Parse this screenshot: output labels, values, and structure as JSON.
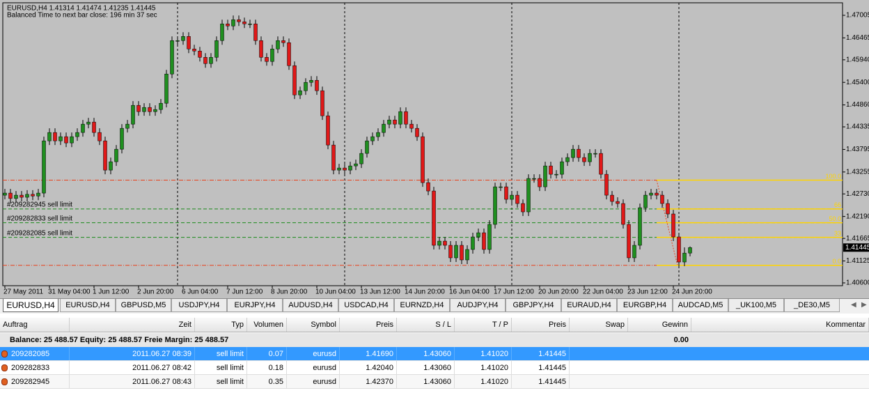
{
  "chart_data": {
    "type": "candlestick",
    "title": "EURUSD,H4  1.41314 1.41474 1.41235 1.41445",
    "subtitle": "Balanced Time to next bar close: 196 min 37 sec",
    "categories": [
      "27 May 2011",
      null,
      null,
      null,
      null,
      null,
      null,
      null,
      "31 May 04:00",
      null,
      null,
      null,
      null,
      null,
      null,
      null,
      "1 Jun 12:00",
      null,
      null,
      null,
      null,
      null,
      null,
      null,
      "2 Jun 20:00",
      null,
      null,
      null,
      null,
      null,
      null,
      null,
      "6 Jun 04:00",
      null,
      null,
      null,
      null,
      null,
      null,
      null,
      "7 Jun 12:00",
      null,
      null,
      null,
      null,
      null,
      null,
      null,
      "8 Jun 20:00",
      null,
      null,
      null,
      null,
      null,
      null,
      null,
      "10 Jun 04:00",
      null,
      null,
      null,
      null,
      null,
      null,
      null,
      "13 Jun 12:00",
      null,
      null,
      null,
      null,
      null,
      null,
      null,
      "14 Jun 20:00",
      null,
      null,
      null,
      null,
      null,
      null,
      null,
      "16 Jun 04:00",
      null,
      null,
      null,
      null,
      null,
      null,
      null,
      "17 Jun 12:00",
      null,
      null,
      null,
      null,
      null,
      null,
      null,
      "20 Jun 20:00",
      null,
      null,
      null,
      null,
      null,
      null,
      null,
      "22 Jun 04:00",
      null,
      null,
      null,
      null,
      null,
      null,
      null,
      "23 Jun 12:00",
      null,
      null,
      null,
      null,
      null,
      null,
      null,
      "24 Jun 20:00",
      null,
      null,
      null
    ],
    "open": [
      1.427,
      1.4275,
      1.4262,
      1.427,
      1.4265,
      1.4272,
      1.4268,
      1.4275,
      1.44,
      1.442,
      1.44,
      1.441,
      1.4395,
      1.441,
      1.442,
      1.444,
      1.4445,
      1.442,
      1.44,
      1.433,
      1.435,
      1.438,
      1.443,
      1.444,
      1.4485,
      1.447,
      1.448,
      1.447,
      1.4475,
      1.449,
      1.456,
      1.464,
      1.464,
      1.465,
      1.462,
      1.4615,
      1.46,
      1.4585,
      1.46,
      1.464,
      1.468,
      1.4675,
      1.469,
      1.4685,
      1.468,
      1.468,
      1.464,
      1.46,
      1.459,
      1.462,
      1.464,
      1.4635,
      1.458,
      1.451,
      1.452,
      1.454,
      1.4545,
      1.452,
      1.446,
      1.439,
      1.433,
      1.4335,
      1.433,
      1.434,
      1.4345,
      1.437,
      1.44,
      1.441,
      1.442,
      1.444,
      1.445,
      1.444,
      1.447,
      1.444,
      1.443,
      1.441,
      1.43,
      1.428,
      1.415,
      1.416,
      1.415,
      1.412,
      1.415,
      1.4115,
      1.414,
      1.417,
      1.418,
      1.414,
      1.42,
      1.429,
      1.429,
      1.426,
      1.427,
      1.425,
      1.423,
      1.431,
      1.431,
      1.429,
      1.434,
      1.432,
      1.432,
      1.435,
      1.436,
      1.438,
      1.436,
      1.435,
      1.437,
      1.437,
      1.432,
      1.427,
      1.4255,
      1.425,
      1.42,
      1.412,
      1.415,
      1.424,
      1.427,
      1.4275,
      1.427,
      1.425,
      1.4225,
      1.417,
      1.411,
      1.41314
    ],
    "high": [
      1.4285,
      1.4285,
      1.428,
      1.428,
      1.4282,
      1.4282,
      1.4285,
      1.441,
      1.443,
      1.443,
      1.442,
      1.442,
      1.442,
      1.443,
      1.445,
      1.4455,
      1.4455,
      1.443,
      1.441,
      1.436,
      1.439,
      1.444,
      1.445,
      1.4495,
      1.4495,
      1.449,
      1.449,
      1.4485,
      1.45,
      1.457,
      1.465,
      1.465,
      1.466,
      1.466,
      1.463,
      1.4625,
      1.461,
      1.461,
      1.465,
      1.469,
      1.469,
      1.47,
      1.47,
      1.4695,
      1.469,
      1.469,
      1.465,
      1.461,
      1.463,
      1.465,
      1.465,
      1.4645,
      1.459,
      1.453,
      1.455,
      1.4555,
      1.4555,
      1.453,
      1.447,
      1.44,
      1.4345,
      1.4345,
      1.435,
      1.4355,
      1.438,
      1.441,
      1.442,
      1.443,
      1.445,
      1.446,
      1.446,
      1.448,
      1.448,
      1.445,
      1.444,
      1.442,
      1.431,
      1.429,
      1.417,
      1.417,
      1.416,
      1.416,
      1.416,
      1.415,
      1.418,
      1.419,
      1.419,
      1.421,
      1.43,
      1.43,
      1.43,
      1.428,
      1.428,
      1.426,
      1.432,
      1.432,
      1.432,
      1.435,
      1.435,
      1.433,
      1.436,
      1.437,
      1.439,
      1.439,
      1.437,
      1.438,
      1.438,
      1.438,
      1.433,
      1.428,
      1.4265,
      1.426,
      1.421,
      1.416,
      1.425,
      1.428,
      1.4285,
      1.4285,
      1.428,
      1.426,
      1.4235,
      1.418,
      1.4145,
      1.41474
    ],
    "low": [
      1.426,
      1.4252,
      1.4252,
      1.4255,
      1.4255,
      1.4258,
      1.4258,
      1.4265,
      1.439,
      1.439,
      1.439,
      1.4385,
      1.4385,
      1.44,
      1.441,
      1.443,
      1.441,
      1.439,
      1.432,
      1.432,
      1.434,
      1.437,
      1.442,
      1.443,
      1.446,
      1.446,
      1.446,
      1.446,
      1.4465,
      1.448,
      1.455,
      1.463,
      1.463,
      1.461,
      1.4605,
      1.459,
      1.4575,
      1.4575,
      1.459,
      1.463,
      1.4665,
      1.4665,
      1.4675,
      1.467,
      1.467,
      1.463,
      1.459,
      1.458,
      1.458,
      1.461,
      1.4625,
      1.457,
      1.45,
      1.45,
      1.451,
      1.453,
      1.451,
      1.445,
      1.438,
      1.432,
      1.432,
      1.432,
      1.432,
      1.433,
      1.4335,
      1.436,
      1.439,
      1.44,
      1.441,
      1.443,
      1.443,
      1.443,
      1.443,
      1.442,
      1.44,
      1.429,
      1.427,
      1.414,
      1.414,
      1.414,
      1.411,
      1.411,
      1.4105,
      1.4105,
      1.413,
      1.416,
      1.413,
      1.413,
      1.419,
      1.428,
      1.425,
      1.425,
      1.424,
      1.422,
      1.422,
      1.43,
      1.428,
      1.428,
      1.431,
      1.431,
      1.431,
      1.434,
      1.435,
      1.435,
      1.434,
      1.434,
      1.436,
      1.431,
      1.426,
      1.4245,
      1.424,
      1.419,
      1.411,
      1.411,
      1.414,
      1.423,
      1.426,
      1.426,
      1.424,
      1.4215,
      1.416,
      1.41,
      1.41,
      1.41235
    ],
    "close": [
      1.4275,
      1.4262,
      1.427,
      1.4265,
      1.4272,
      1.4268,
      1.4275,
      1.44,
      1.442,
      1.44,
      1.441,
      1.4395,
      1.441,
      1.442,
      1.444,
      1.4445,
      1.442,
      1.44,
      1.433,
      1.435,
      1.438,
      1.443,
      1.444,
      1.4485,
      1.447,
      1.448,
      1.447,
      1.4475,
      1.449,
      1.456,
      1.464,
      1.464,
      1.465,
      1.462,
      1.4615,
      1.46,
      1.4585,
      1.46,
      1.464,
      1.468,
      1.4675,
      1.469,
      1.4685,
      1.468,
      1.468,
      1.464,
      1.46,
      1.459,
      1.462,
      1.464,
      1.4635,
      1.458,
      1.451,
      1.452,
      1.454,
      1.4545,
      1.452,
      1.446,
      1.439,
      1.433,
      1.4335,
      1.433,
      1.434,
      1.4345,
      1.437,
      1.44,
      1.441,
      1.442,
      1.444,
      1.445,
      1.444,
      1.447,
      1.444,
      1.443,
      1.441,
      1.43,
      1.428,
      1.415,
      1.416,
      1.415,
      1.412,
      1.415,
      1.4115,
      1.414,
      1.417,
      1.418,
      1.414,
      1.42,
      1.429,
      1.429,
      1.426,
      1.427,
      1.425,
      1.423,
      1.431,
      1.431,
      1.429,
      1.434,
      1.432,
      1.432,
      1.435,
      1.436,
      1.438,
      1.436,
      1.435,
      1.437,
      1.437,
      1.432,
      1.427,
      1.4255,
      1.425,
      1.42,
      1.412,
      1.415,
      1.424,
      1.427,
      1.4275,
      1.427,
      1.425,
      1.4225,
      1.417,
      1.411,
      1.41314,
      1.41445
    ],
    "up_color": "#1f8f1f",
    "down_color": "#e01818",
    "ylim": [
      1.40533,
      1.47138
    ],
    "yticks": [
      1.47005,
      1.46465,
      {
        "value": 1.4594,
        "label": "1.45940"
      },
      {
        "value": 1.454,
        "label": "1.45400"
      },
      {
        "value": 1.4486,
        "label": "1.44860"
      },
      1.44335,
      1.43795,
      1.43255,
      {
        "value": 1.4273,
        "label": "1.42730"
      },
      {
        "value": 1.4219,
        "label": "1.42190"
      },
      1.41665,
      1.41125,
      {
        "value": 1.406,
        "label": "1.40600"
      }
    ],
    "current_price": 1.41445,
    "order_lines": [
      {
        "label": "#209282945 sell limit",
        "value": 1.4237
      },
      {
        "label": "#209282833 sell limit",
        "value": 1.4204
      },
      {
        "label": "#209282085 sell limit",
        "value": 1.4169
      }
    ],
    "stop_lines": [
      1.4306,
      1.4102
    ],
    "fibo_levels": [
      {
        "value": 1.4306,
        "label": "100.0"
      },
      {
        "value": 1.4237,
        "label": "66"
      },
      {
        "value": 1.4204,
        "label": "50.0"
      },
      {
        "value": 1.4169,
        "label": "33"
      },
      {
        "value": 1.4102,
        "label": "0.0"
      }
    ]
  },
  "tabs": [
    "EURUSD,H4",
    "EURUSD,H4",
    "GBPUSD,M5",
    "USDJPY,H4",
    "EURJPY,H4",
    "AUDUSD,H4",
    "USDCAD,H4",
    "EURNZD,H4",
    "AUDJPY,H4",
    "GBPJPY,H4",
    "EURAUD,H4",
    "EURGBP,H4",
    "AUDCAD,M5",
    "_UK100,M5",
    "_DE30,M5"
  ],
  "table": {
    "columns": [
      "Auftrag",
      "Zeit",
      "Typ",
      "Volumen",
      "Symbol",
      "Preis",
      "S / L",
      "T / P",
      "Preis",
      "Swap",
      "Gewinn",
      "Kommentar"
    ],
    "balance": "Balance: 25 488.57  Equity: 25 488.57  Freie Margin: 25 488.57",
    "balance_profit": "0.00",
    "rows": [
      [
        "209282085",
        "2011.06.27 08:39",
        "sell limit",
        "0.07",
        "eurusd",
        "1.41690",
        "1.43060",
        "1.41020",
        "1.41445"
      ],
      [
        "209282833",
        "2011.06.27 08:42",
        "sell limit",
        "0.18",
        "eurusd",
        "1.42040",
        "1.43060",
        "1.41020",
        "1.41445"
      ],
      [
        "209282945",
        "2011.06.27 08:43",
        "sell limit",
        "0.35",
        "eurusd",
        "1.42370",
        "1.43060",
        "1.41020",
        "1.41445"
      ]
    ]
  }
}
